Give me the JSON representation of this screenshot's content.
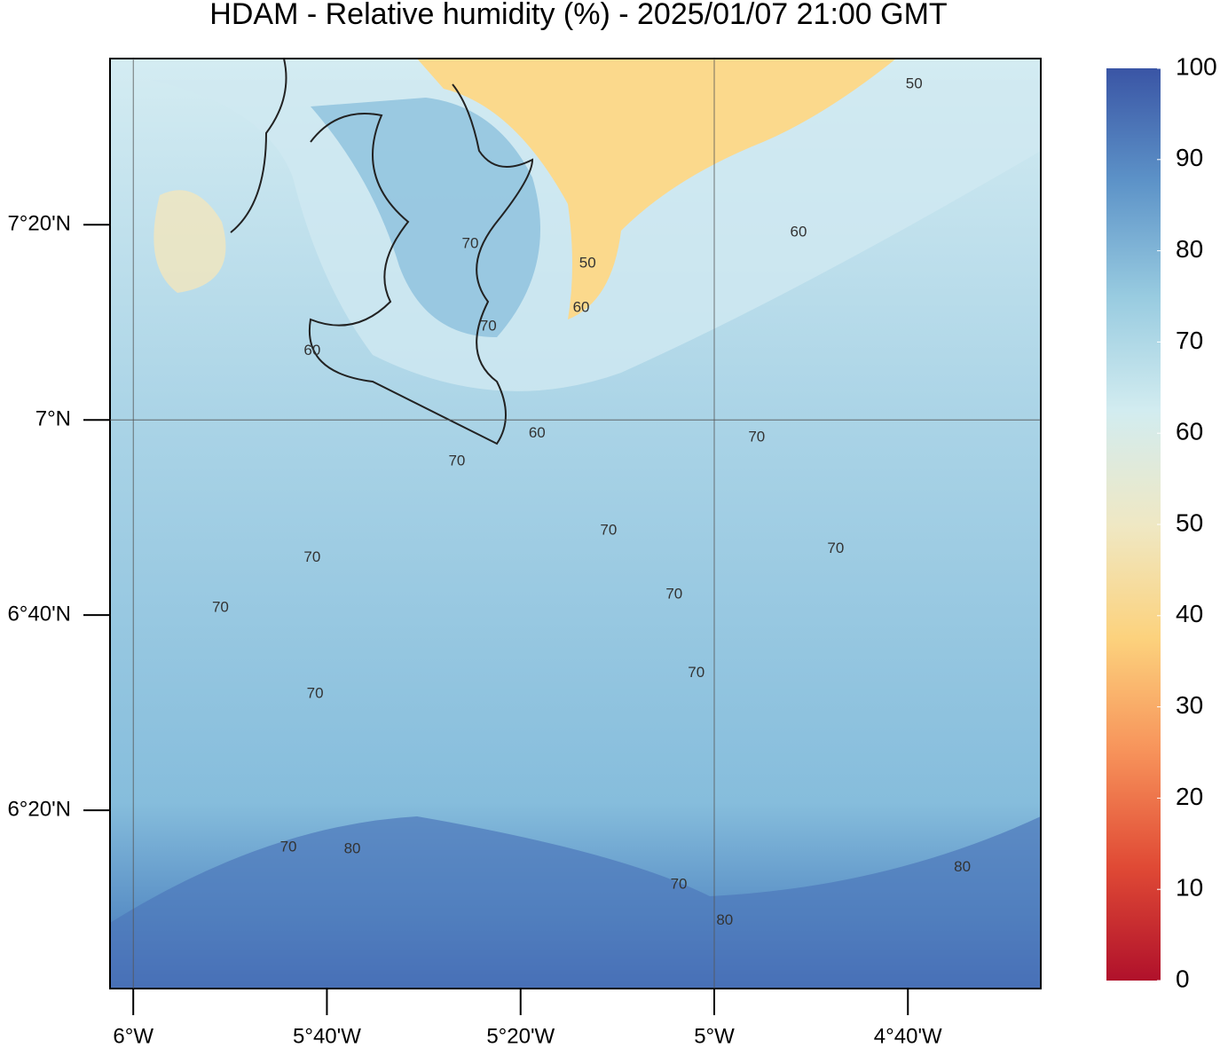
{
  "chart_data": {
    "type": "contour-map",
    "title": "HDAM - Relative humidity (%)  -  2025/01/07  21:00 GMT",
    "xlim": [
      -6.04,
      -4.438
    ],
    "ylim": [
      6.029,
      7.617
    ],
    "xticks": [
      {
        "value": -6,
        "label": "6°W"
      },
      {
        "value": -5.6667,
        "label": "5°40'W"
      },
      {
        "value": -5.3333,
        "label": "5°20'W"
      },
      {
        "value": -5,
        "label": "5°W"
      },
      {
        "value": -4.6667,
        "label": "4°40'W"
      }
    ],
    "yticks": [
      {
        "value": 6.3333,
        "label": "6°20'N"
      },
      {
        "value": 6.6667,
        "label": "6°40'N"
      },
      {
        "value": 7,
        "label": "7°N"
      },
      {
        "value": 7.3333,
        "label": "7°20'N"
      }
    ],
    "grid_x": [
      -6,
      -5
    ],
    "grid_y": [
      7
    ],
    "colorbar": {
      "lim": [
        0,
        100
      ],
      "ticks": [
        0,
        10,
        20,
        30,
        40,
        50,
        60,
        70,
        80,
        90,
        100
      ],
      "colors": [
        "#b0112b",
        "#e04a35",
        "#f7925a",
        "#fcd27d",
        "#efe8c4",
        "#d2ecf0",
        "#98cbe0",
        "#5d93c8",
        "#3a55a5"
      ]
    },
    "contour_labels": [
      {
        "value": 50,
        "x": -4.656,
        "y": 7.573
      },
      {
        "value": 60,
        "x": -4.855,
        "y": 7.32
      },
      {
        "value": 50,
        "x": -5.218,
        "y": 7.267
      },
      {
        "value": 60,
        "x": -5.229,
        "y": 7.191
      },
      {
        "value": 70,
        "x": -5.42,
        "y": 7.3
      },
      {
        "value": 70,
        "x": -5.389,
        "y": 7.159
      },
      {
        "value": 60,
        "x": -5.692,
        "y": 7.118
      },
      {
        "value": 60,
        "x": -5.305,
        "y": 6.977
      },
      {
        "value": 70,
        "x": -5.443,
        "y": 6.929
      },
      {
        "value": 70,
        "x": -4.927,
        "y": 6.97
      },
      {
        "value": 70,
        "x": -5.182,
        "y": 6.811
      },
      {
        "value": 70,
        "x": -5.692,
        "y": 6.765
      },
      {
        "value": 70,
        "x": -4.791,
        "y": 6.78
      },
      {
        "value": 70,
        "x": -5.069,
        "y": 6.702
      },
      {
        "value": 70,
        "x": -5.85,
        "y": 6.679
      },
      {
        "value": 70,
        "x": -5.031,
        "y": 6.568
      },
      {
        "value": 70,
        "x": -5.687,
        "y": 6.532
      },
      {
        "value": 70,
        "x": -5.733,
        "y": 6.27
      },
      {
        "value": 80,
        "x": -5.623,
        "y": 6.267
      },
      {
        "value": 80,
        "x": -4.573,
        "y": 6.236
      },
      {
        "value": 70,
        "x": -5.061,
        "y": 6.206
      },
      {
        "value": 80,
        "x": -4.982,
        "y": 6.145
      }
    ]
  }
}
